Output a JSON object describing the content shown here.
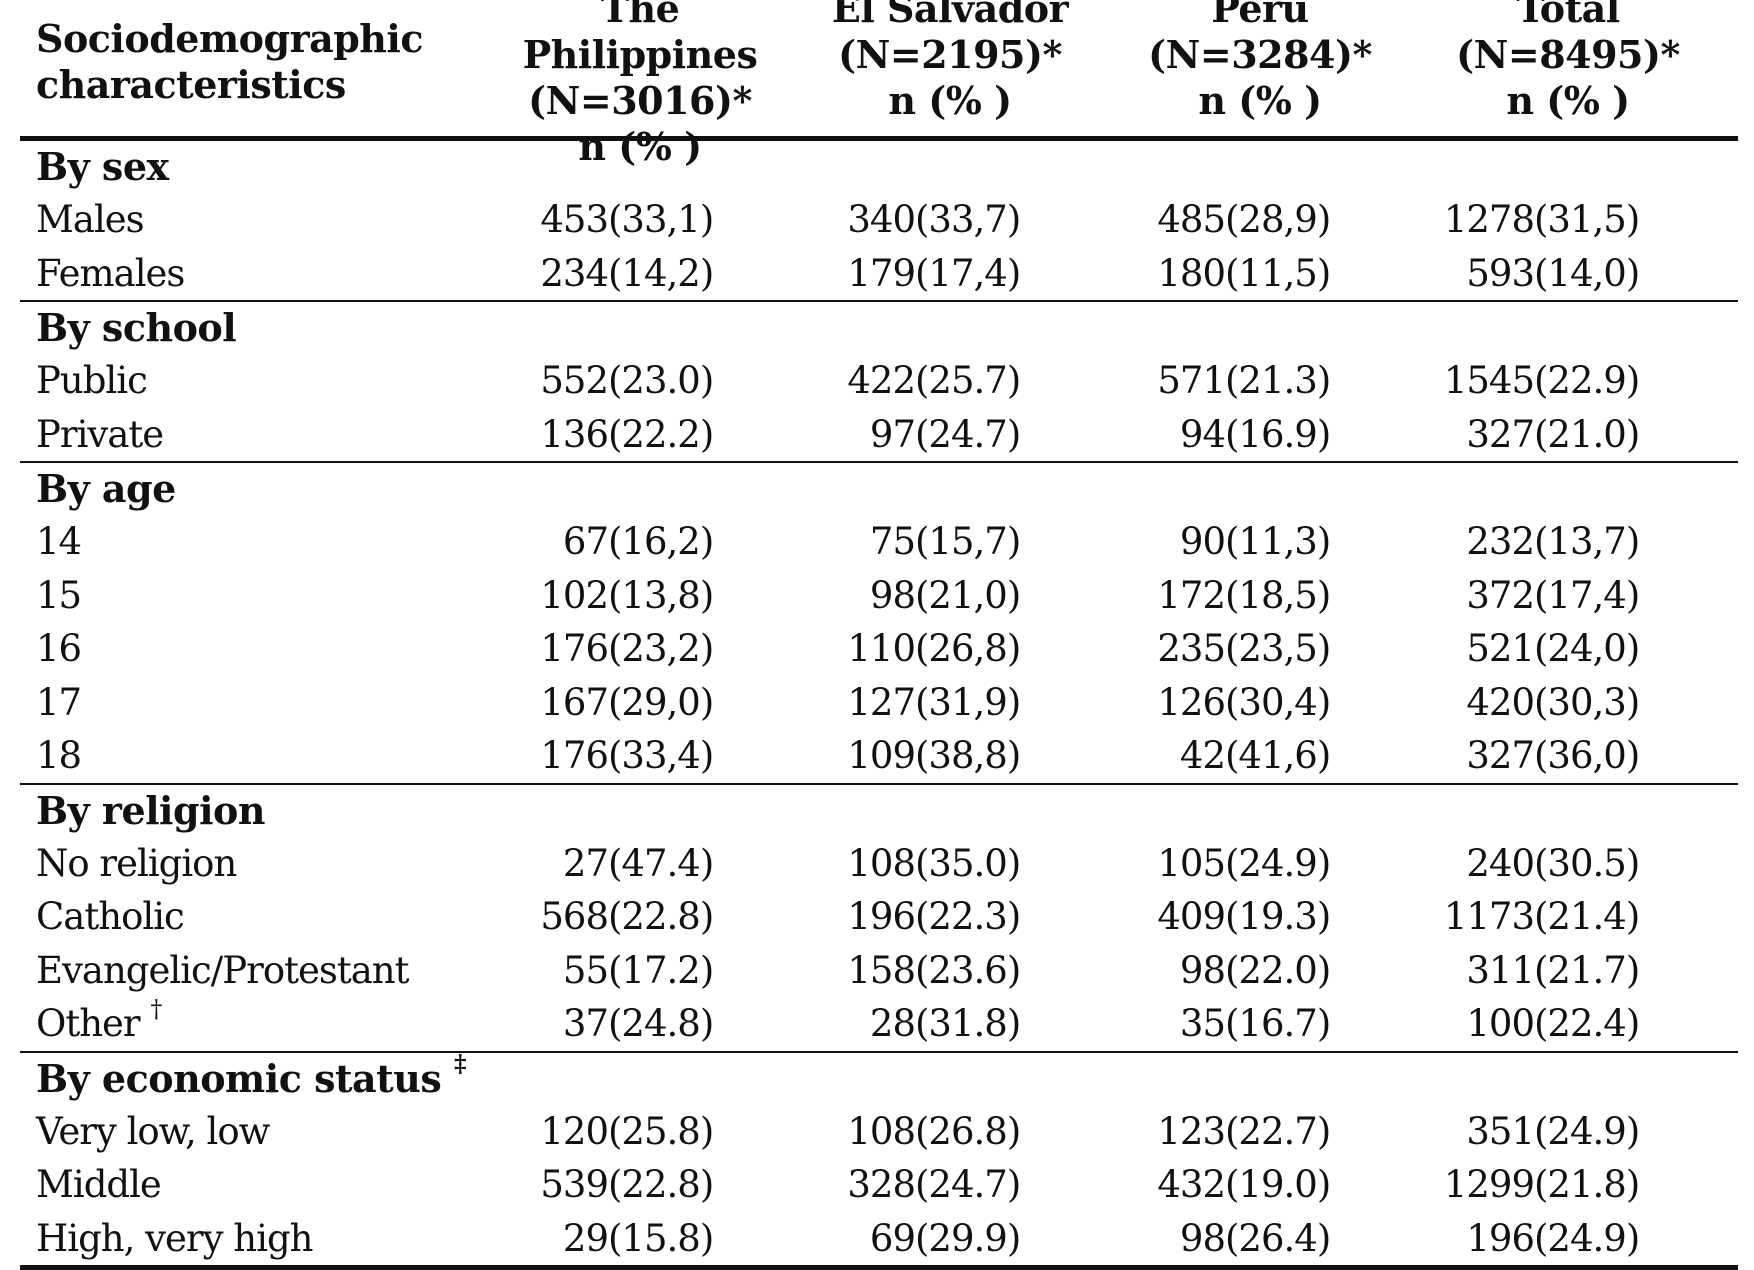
{
  "table": {
    "header": {
      "label_line1": "Sociodemographic",
      "label_line2": "characteristics",
      "columns": [
        {
          "name": "The Philippines",
          "n_total": "(N=3016)*",
          "unit": "n (% )"
        },
        {
          "name": "El Salvador",
          "n_total": "(N=2195)*",
          "unit": "n (% )"
        },
        {
          "name": "Peru",
          "n_total": "(N=3284)*",
          "unit": "n (% )"
        },
        {
          "name": "Total",
          "n_total": "(N=8495)*",
          "unit": "n (% )"
        }
      ]
    },
    "sections": [
      {
        "title": "By sex",
        "title_mark": "",
        "rows": [
          {
            "label": "Males",
            "label_mark": "",
            "cells": [
              {
                "n": "453",
                "p": "(33,1)"
              },
              {
                "n": "340",
                "p": "(33,7)"
              },
              {
                "n": "485",
                "p": "(28,9)"
              },
              {
                "n": "1278",
                "p": "(31,5)"
              }
            ]
          },
          {
            "label": "Females",
            "label_mark": "",
            "cells": [
              {
                "n": "234",
                "p": "(14,2)"
              },
              {
                "n": "179",
                "p": "(17,4)"
              },
              {
                "n": "180",
                "p": "(11,5)"
              },
              {
                "n": "593",
                "p": "(14,0)"
              }
            ]
          }
        ]
      },
      {
        "title": "By school",
        "title_mark": "",
        "rows": [
          {
            "label": "Public",
            "label_mark": "",
            "cells": [
              {
                "n": "552",
                "p": "(23.0)"
              },
              {
                "n": "422",
                "p": "(25.7)"
              },
              {
                "n": "571",
                "p": "(21.3)"
              },
              {
                "n": "1545",
                "p": "(22.9)"
              }
            ]
          },
          {
            "label": "Private",
            "label_mark": "",
            "cells": [
              {
                "n": "136",
                "p": "(22.2)"
              },
              {
                "n": "97",
                "p": "(24.7)"
              },
              {
                "n": "94",
                "p": "(16.9)"
              },
              {
                "n": "327",
                "p": "(21.0)"
              }
            ]
          }
        ]
      },
      {
        "title": "By age",
        "title_mark": "",
        "rows": [
          {
            "label": "14",
            "label_mark": "",
            "cells": [
              {
                "n": "67",
                "p": "(16,2)"
              },
              {
                "n": "75",
                "p": "(15,7)"
              },
              {
                "n": "90",
                "p": "(11,3)"
              },
              {
                "n": "232",
                "p": "(13,7)"
              }
            ]
          },
          {
            "label": "15",
            "label_mark": "",
            "cells": [
              {
                "n": "102",
                "p": "(13,8)"
              },
              {
                "n": "98",
                "p": "(21,0)"
              },
              {
                "n": "172",
                "p": "(18,5)"
              },
              {
                "n": "372",
                "p": "(17,4)"
              }
            ]
          },
          {
            "label": "16",
            "label_mark": "",
            "cells": [
              {
                "n": "176",
                "p": "(23,2)"
              },
              {
                "n": "110",
                "p": "(26,8)"
              },
              {
                "n": "235",
                "p": "(23,5)"
              },
              {
                "n": "521",
                "p": "(24,0)"
              }
            ]
          },
          {
            "label": "17",
            "label_mark": "",
            "cells": [
              {
                "n": "167",
                "p": "(29,0)"
              },
              {
                "n": "127",
                "p": "(31,9)"
              },
              {
                "n": "126",
                "p": "(30,4)"
              },
              {
                "n": "420",
                "p": "(30,3)"
              }
            ]
          },
          {
            "label": "18",
            "label_mark": "",
            "cells": [
              {
                "n": "176",
                "p": "(33,4)"
              },
              {
                "n": "109",
                "p": "(38,8)"
              },
              {
                "n": "42",
                "p": "(41,6)"
              },
              {
                "n": "327",
                "p": "(36,0)"
              }
            ]
          }
        ]
      },
      {
        "title": "By religion",
        "title_mark": "",
        "rows": [
          {
            "label": "No religion",
            "label_mark": "",
            "cells": [
              {
                "n": "27",
                "p": "(47.4)"
              },
              {
                "n": "108",
                "p": "(35.0)"
              },
              {
                "n": "105",
                "p": "(24.9)"
              },
              {
                "n": "240",
                "p": "(30.5)"
              }
            ]
          },
          {
            "label": "Catholic",
            "label_mark": "",
            "cells": [
              {
                "n": "568",
                "p": "(22.8)"
              },
              {
                "n": "196",
                "p": "(22.3)"
              },
              {
                "n": "409",
                "p": "(19.3)"
              },
              {
                "n": "1173",
                "p": "(21.4)"
              }
            ]
          },
          {
            "label": "Evangelic/Protestant",
            "label_mark": "",
            "cells": [
              {
                "n": "55",
                "p": "(17.2)"
              },
              {
                "n": "158",
                "p": "(23.6)"
              },
              {
                "n": "98",
                "p": "(22.0)"
              },
              {
                "n": "311",
                "p": "(21.7)"
              }
            ]
          },
          {
            "label": "Other",
            "label_mark": "†",
            "cells": [
              {
                "n": "37",
                "p": "(24.8)"
              },
              {
                "n": "28",
                "p": "(31.8)"
              },
              {
                "n": "35",
                "p": "(16.7)"
              },
              {
                "n": "100",
                "p": "(22.4)"
              }
            ]
          }
        ]
      },
      {
        "title": "By economic status",
        "title_mark": "‡",
        "rows": [
          {
            "label": "Very low, low",
            "label_mark": "",
            "cells": [
              {
                "n": "120",
                "p": "(25.8)"
              },
              {
                "n": "108",
                "p": "(26.8)"
              },
              {
                "n": "123",
                "p": "(22.7)"
              },
              {
                "n": "351",
                "p": "(24.9)"
              }
            ]
          },
          {
            "label": "Middle",
            "label_mark": "",
            "cells": [
              {
                "n": "539",
                "p": "(22.8)"
              },
              {
                "n": "328",
                "p": "(24.7)"
              },
              {
                "n": "432",
                "p": "(19.0)"
              },
              {
                "n": "1299",
                "p": "(21.8)"
              }
            ]
          },
          {
            "label": "High, very high",
            "label_mark": "",
            "cells": [
              {
                "n": "29",
                "p": "(15.8)"
              },
              {
                "n": "69",
                "p": "(29.9)"
              },
              {
                "n": "98",
                "p": "(26.4)"
              },
              {
                "n": "196",
                "p": "(24.9)"
              }
            ]
          }
        ]
      }
    ]
  }
}
